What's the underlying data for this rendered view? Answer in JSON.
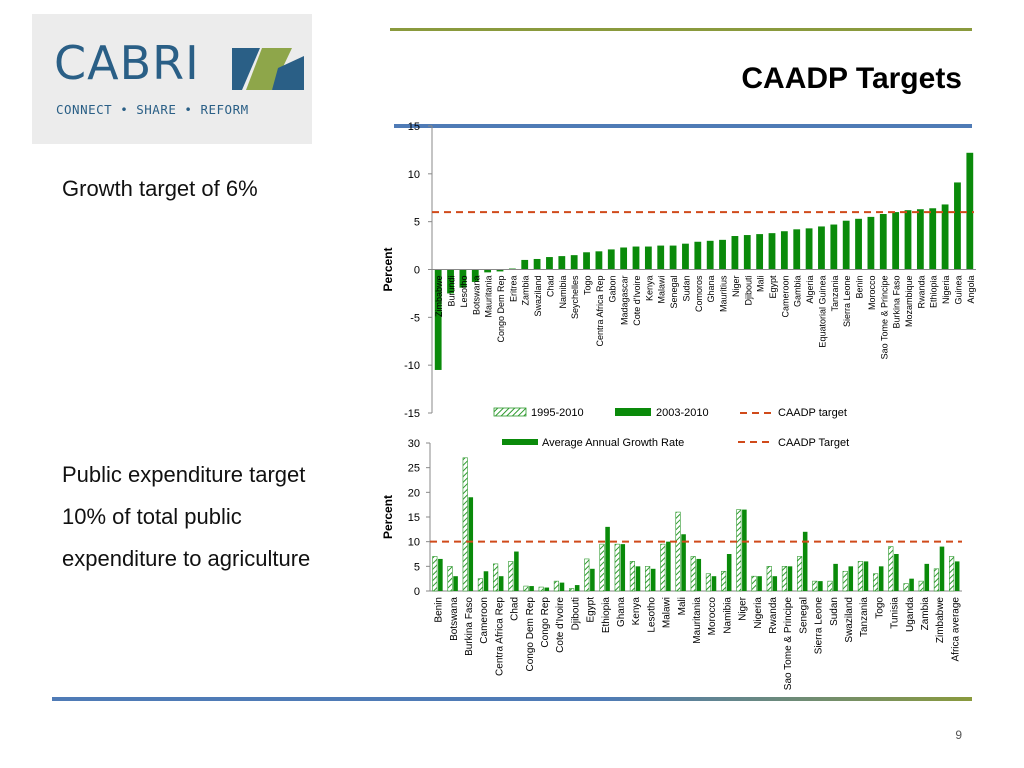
{
  "logo": {
    "name": "CABRI",
    "tagline": "CONNECT • SHARE • REFORM"
  },
  "title": "CAADP Targets",
  "page_number": "9",
  "left_text": {
    "growth": "Growth target of 6%",
    "expenditure_lines": [
      "Public expenditure target",
      "10% of total public",
      "expenditure to agriculture"
    ]
  },
  "colors": {
    "series_dark": "#0a8a0a",
    "series_hatched": "#2e9a2e",
    "target_line": "#d04a1a",
    "top_rule": "#4f7bb6",
    "accent_olive": "#8a9a3d"
  },
  "chart_data": [
    {
      "type": "bar",
      "ylabel": "Percent",
      "ylim": [
        -15,
        15
      ],
      "yticks": [
        -15,
        -10,
        -5,
        0,
        5,
        10,
        15
      ],
      "legend": [
        "1995-2010",
        "2003-2010",
        "CAADP target"
      ],
      "target": 6,
      "categories": [
        "Zimbabwe",
        "Burundi",
        "Lesotho",
        "Botswana",
        "Mauritania",
        "Congo Dem Rep",
        "Eritrea",
        "Zambia",
        "Swaziland",
        "Chad",
        "Namibia",
        "Seychelles",
        "Togo",
        "Centra Africa Rep",
        "Gabon",
        "Madagascar",
        "Cote d'Ivoire",
        "Kenya",
        "Malawi",
        "Senegal",
        "Sudan",
        "Comoros",
        "Ghana",
        "Mauritius",
        "Niger",
        "Djibouti",
        "Mali",
        "Egypt",
        "Cameroon",
        "Gambia",
        "Algeria",
        "Equatorial Guinea",
        "Tanzania",
        "Sierra Leone",
        "Benin",
        "Morocco",
        "Sao Tome & Principe",
        "Burkina Faso",
        "Mozambique",
        "Rwanda",
        "Ethiopia",
        "Nigeria",
        "Guinea",
        "Angola"
      ],
      "series": [
        {
          "name": "2003-2010",
          "values": [
            -10.5,
            -2.5,
            -1.9,
            -1.3,
            -0.3,
            -0.2,
            0.1,
            1.0,
            1.1,
            1.3,
            1.4,
            1.5,
            1.8,
            1.9,
            2.1,
            2.3,
            2.4,
            2.4,
            2.5,
            2.5,
            2.7,
            2.9,
            3.0,
            3.1,
            3.5,
            3.6,
            3.7,
            3.8,
            4.0,
            4.2,
            4.3,
            4.5,
            4.7,
            5.1,
            5.3,
            5.5,
            5.8,
            6.0,
            6.2,
            6.3,
            6.4,
            6.8,
            9.1,
            12.2
          ]
        }
      ]
    },
    {
      "type": "bar",
      "ylabel": "Percent",
      "ylim": [
        0,
        30
      ],
      "yticks": [
        0,
        5,
        10,
        15,
        20,
        25,
        30
      ],
      "legend": [
        "Average Annual Growth Rate",
        "CAADP Target"
      ],
      "target": 10,
      "categories": [
        "Benin",
        "Botswana",
        "Burkina Faso",
        "Cameroon",
        "Centra Africa Rep",
        "Chad",
        "Congo Dem Rep",
        "Congo Rep",
        "Cote d'Ivoire",
        "Djibouti",
        "Egypt",
        "Ethiopia",
        "Ghana",
        "Kenya",
        "Lesotho",
        "Malawi",
        "Mali",
        "Mauritania",
        "Morocco",
        "Namibia",
        "Niger",
        "Nigeria",
        "Rwanda",
        "Sao Tome & Principe",
        "Senegal",
        "Sierra Leone",
        "Sudan",
        "Swaziland",
        "Tanzania",
        "Togo",
        "Tunisia",
        "Uganda",
        "Zambia",
        "Zimbabwe",
        "Africa average"
      ],
      "series": [
        {
          "name": "hatched",
          "values": [
            7.0,
            5.0,
            27.0,
            2.5,
            5.5,
            6.0,
            1.0,
            0.8,
            2.0,
            0.5,
            6.5,
            9.5,
            9.5,
            6.0,
            5.0,
            9.5,
            16.0,
            7.0,
            3.5,
            4.0,
            16.5,
            3.0,
            5.0,
            5.0,
            7.0,
            2.0,
            2.0,
            4.0,
            6.0,
            3.5,
            9.0,
            1.5,
            2.0,
            4.5,
            7.0
          ]
        },
        {
          "name": "solid",
          "values": [
            6.5,
            3.0,
            19.0,
            4.0,
            3.0,
            8.0,
            1.0,
            0.7,
            1.7,
            1.2,
            4.5,
            13.0,
            9.5,
            5.0,
            4.5,
            10.0,
            11.5,
            6.5,
            3.0,
            7.5,
            16.5,
            3.0,
            3.0,
            5.0,
            12.0,
            2.0,
            5.5,
            5.0,
            6.0,
            5.0,
            7.5,
            2.5,
            5.5,
            9.0,
            6.0
          ]
        }
      ]
    }
  ]
}
